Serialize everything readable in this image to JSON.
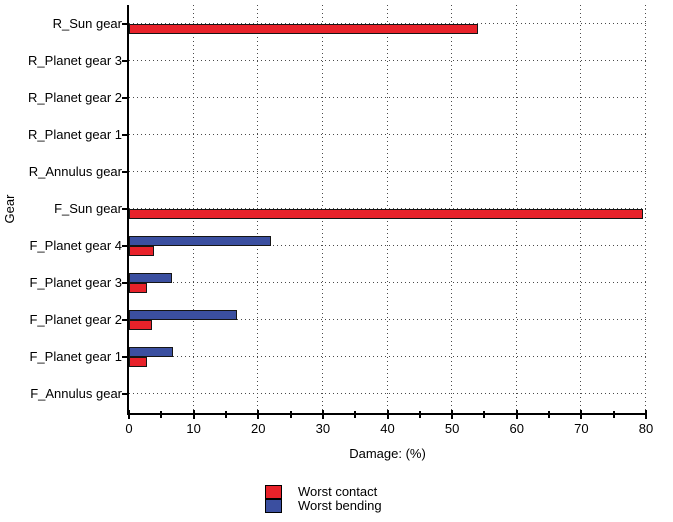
{
  "chart_data": {
    "type": "bar",
    "orientation": "horizontal",
    "xlabel": "Damage: (%)",
    "ylabel": "Gear",
    "xlim": [
      0,
      80
    ],
    "xticks": [
      0,
      10,
      20,
      30,
      40,
      50,
      60,
      70,
      80
    ],
    "minor_tick_step": 5,
    "grid": "dotted",
    "legend_position": "bottom",
    "categories": [
      "R_Sun gear",
      "R_Planet gear 3",
      "R_Planet gear 2",
      "R_Planet gear 1",
      "R_Annulus gear",
      "F_Sun gear",
      "F_Planet gear 4",
      "F_Planet gear 3",
      "F_Planet gear 2",
      "F_Planet gear 1",
      "F_Annulus gear"
    ],
    "series": [
      {
        "name": "Worst contact",
        "color": "#e8222a",
        "values": [
          54,
          0,
          0,
          0,
          0,
          79.5,
          3.8,
          2.8,
          3.5,
          2.8,
          0
        ]
      },
      {
        "name": "Worst bending",
        "color": "#3b4fa0",
        "values": [
          0,
          0,
          0,
          0,
          0,
          0,
          22,
          6.6,
          16.7,
          6.8,
          0
        ]
      }
    ]
  }
}
